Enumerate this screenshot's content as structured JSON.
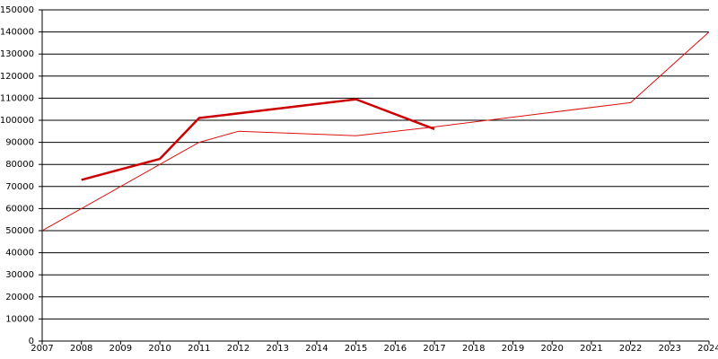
{
  "chart_data": {
    "type": "line",
    "xlim": [
      2007,
      2024
    ],
    "xticks": [
      2007,
      2008,
      2009,
      2010,
      2011,
      2012,
      2013,
      2014,
      2015,
      2016,
      2017,
      2018,
      2019,
      2020,
      2021,
      2022,
      2023,
      2024
    ],
    "ylim": [
      0,
      150000
    ],
    "yticks": [
      0,
      10000,
      20000,
      30000,
      40000,
      50000,
      60000,
      70000,
      80000,
      90000,
      100000,
      110000,
      120000,
      130000,
      140000,
      150000
    ],
    "grid": true,
    "series": [
      {
        "color": "#cc0000",
        "line_width": 2.5,
        "x": [
          2008,
          2010,
          2011,
          2015,
          2017
        ],
        "values": [
          73000,
          82500,
          101000,
          109500,
          96000
        ]
      },
      {
        "color": "#dd1111",
        "line_width": 1,
        "x": [
          2007,
          2011,
          2012,
          2015,
          2017,
          2022,
          2024
        ],
        "values": [
          50000,
          90000,
          95000,
          93000,
          97000,
          108000,
          140000
        ]
      }
    ]
  }
}
